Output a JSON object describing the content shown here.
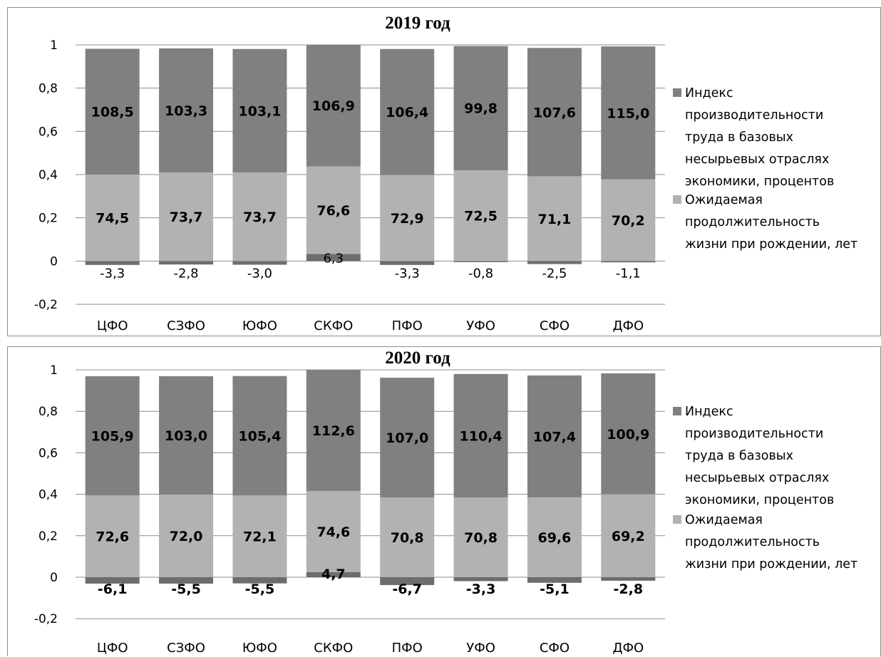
{
  "chart_data": [
    {
      "type": "bar",
      "stacked": true,
      "title": "2019 год",
      "categories": [
        "ЦФО",
        "СЗФО",
        "ЮФО",
        "СКФО",
        "ПФО",
        "УФО",
        "СФО",
        "ДФО"
      ],
      "ylim": [
        -0.2,
        1
      ],
      "yticks": [
        "1",
        "0,8",
        "0,6",
        "0,4",
        "0,2",
        "0",
        "-0,2"
      ],
      "grid": true,
      "legend_position": "right",
      "series": [
        {
          "name": "Индекс производительности труда в базовых несырьевых отраслях экономики, процентов",
          "color": "#808080",
          "shares": [
            0.582,
            0.574,
            0.571,
            0.562,
            0.583,
            0.575,
            0.594,
            0.615
          ],
          "labels": [
            "108,5",
            "103,3",
            "103,1",
            "106,9",
            "106,4",
            "99,8",
            "107,6",
            "115,0"
          ]
        },
        {
          "name": "Ожидаемая продолжительность жизни при рождении, лет",
          "color": "#b2b2b2",
          "shares": [
            0.4,
            0.41,
            0.41,
            0.405,
            0.398,
            0.42,
            0.392,
            0.378
          ],
          "labels": [
            "74,5",
            "73,7",
            "73,7",
            "76,6",
            "72,9",
            "72,5",
            "71,1",
            "70,2"
          ]
        },
        {
          "name": "",
          "color": "#6d6d6d",
          "shares": [
            -0.018,
            -0.016,
            -0.017,
            0.033,
            -0.018,
            -0.005,
            -0.014,
            -0.006
          ],
          "labels": [
            "-3,3",
            "-2,8",
            "-3,0",
            "6,3",
            "-3,3",
            "-0,8",
            "-2,5",
            "-1,1"
          ]
        }
      ],
      "legend": [
        {
          "lines": [
            "Индекс",
            "производительности",
            "труда в базовых",
            "несырьевых отраслях",
            "экономики, процентов"
          ],
          "color": "#808080"
        },
        {
          "lines": [
            "Ожидаемая",
            "продолжительность",
            "жизни при рождении, лет"
          ],
          "color": "#b2b2b2"
        }
      ]
    },
    {
      "type": "bar",
      "stacked": true,
      "title": "2020 год",
      "categories": [
        "ЦФО",
        "СЗФО",
        "ЮФО",
        "СКФО",
        "ПФО",
        "УФО",
        "СФО",
        "ДФО"
      ],
      "ylim": [
        -0.2,
        1
      ],
      "yticks": [
        "1",
        "0,8",
        "0,6",
        "0,4",
        "0,2",
        "0",
        "-0,2"
      ],
      "grid": true,
      "legend_position": "right",
      "series": [
        {
          "name": "Индекс производительности труда в базовых несырьевых отраслях экономики, процентов",
          "color": "#808080",
          "shares": [
            0.575,
            0.571,
            0.576,
            0.585,
            0.578,
            0.596,
            0.588,
            0.583
          ],
          "labels": [
            "105,9",
            "103,0",
            "105,4",
            "112,6",
            "107,0",
            "110,4",
            "107,4",
            "100,9"
          ]
        },
        {
          "name": "Ожидаемая продолжительность жизни при рождении, лет",
          "color": "#b2b2b2",
          "shares": [
            0.394,
            0.398,
            0.394,
            0.39,
            0.384,
            0.384,
            0.385,
            0.4
          ],
          "labels": [
            "72,6",
            "72,0",
            "72,1",
            "74,6",
            "70,8",
            "70,8",
            "69,6",
            "69,2"
          ]
        },
        {
          "name": "",
          "color": "#6d6d6d",
          "shares": [
            -0.031,
            -0.031,
            -0.03,
            0.025,
            -0.038,
            -0.019,
            -0.027,
            -0.017
          ],
          "labels": [
            "-6,1",
            "-5,5",
            "-5,5",
            "4,7",
            "-6,7",
            "-3,3",
            "-5,1",
            "-2,8"
          ]
        }
      ],
      "legend": [
        {
          "lines": [
            "Индекс",
            "производительности",
            "труда в базовых",
            "несырьевых отраслях",
            "экономики, процентов"
          ],
          "color": "#808080"
        },
        {
          "lines": [
            "Ожидаемая",
            "продолжительность",
            "жизни при рождении, лет"
          ],
          "color": "#b2b2b2"
        }
      ]
    }
  ]
}
